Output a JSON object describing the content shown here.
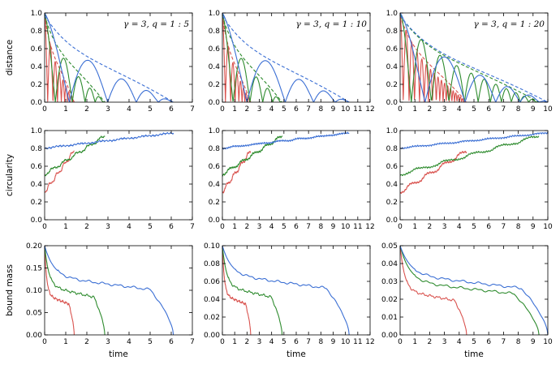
{
  "chart_data": {
    "type": "line",
    "grid": "3x3 panels",
    "colors": {
      "light": "#d9534f",
      "medium": "#2e8b2e",
      "heavy": "#3b6fd4"
    },
    "row_labels": [
      "distance",
      "circularity",
      "bound mass"
    ],
    "xlabel": "time",
    "columns": [
      {
        "annotation": "γ = 3,  q = 1 : 5",
        "xlim": [
          0,
          7
        ],
        "xticks": [
          "0",
          "1",
          "2",
          "3",
          "4",
          "5",
          "6",
          "7"
        ],
        "series_end_times": {
          "light": 1.4,
          "medium": 2.85,
          "heavy": 6.1
        },
        "bound_mass_plateau": {
          "light": 0.09,
          "medium": 0.11,
          "heavy": 0.132
        }
      },
      {
        "annotation": "γ = 3,  q = 1 : 10",
        "xlim": [
          0,
          12
        ],
        "xticks": [
          "0",
          "1",
          "2",
          "3",
          "4",
          "5",
          "6",
          "7",
          "8",
          "9",
          "10",
          "11",
          "12"
        ],
        "series_end_times": {
          "light": 2.3,
          "medium": 4.85,
          "heavy": 10.3
        },
        "bound_mass_plateau": {
          "light": 0.045,
          "medium": 0.055,
          "heavy": 0.068
        }
      },
      {
        "annotation": "γ = 3,  q = 1 : 20",
        "xlim": [
          0,
          10
        ],
        "xticks": [
          "0",
          "1",
          "2",
          "3",
          "4",
          "5",
          "6",
          "7",
          "8",
          "9",
          "10"
        ],
        "series_end_times": {
          "light": 4.5,
          "medium": 9.4,
          "heavy": 10.0
        },
        "bound_mass_plateau": {
          "light": 0.025,
          "medium": 0.03,
          "heavy": 0.034
        }
      }
    ],
    "rows": [
      {
        "name": "distance",
        "ylim": [
          0,
          1.0
        ],
        "yticks": [
          "0.0",
          "0.2",
          "0.4",
          "0.6",
          "0.8",
          "1.0"
        ]
      },
      {
        "name": "circularity",
        "ylim": [
          0,
          1.0
        ],
        "yticks": [
          "0.0",
          "0.2",
          "0.4",
          "0.6",
          "0.8",
          "1.0"
        ]
      },
      {
        "name": "bound mass",
        "ylims": [
          [
            0,
            0.2
          ],
          [
            0,
            0.1
          ],
          [
            0,
            0.05
          ]
        ],
        "yticks_by_col": [
          [
            "0.00",
            "0.05",
            "0.10",
            "0.15",
            "0.20"
          ],
          [
            "0.00",
            "0.02",
            "0.04",
            "0.06",
            "0.08",
            "0.10"
          ],
          [
            "0.00",
            "0.01",
            "0.02",
            "0.03",
            "0.04",
            "0.05"
          ]
        ]
      }
    ]
  }
}
